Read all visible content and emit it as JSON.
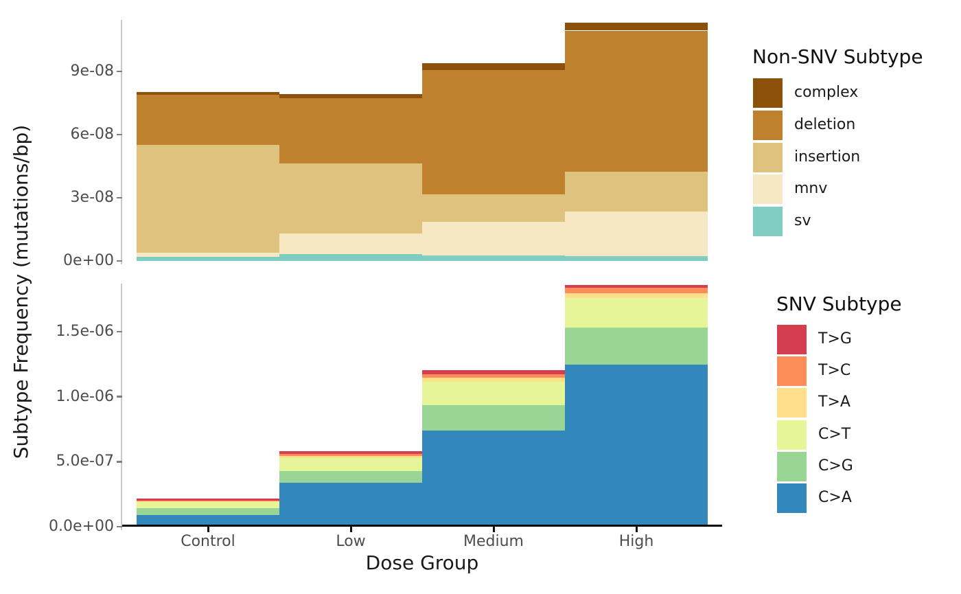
{
  "y_axis_title": "Subtype Frequency (mutations/bp)",
  "x_axis_title": "Dose Group",
  "dose_groups": [
    "Control",
    "Low",
    "Medium",
    "High"
  ],
  "style": {
    "axis_text_color": "#4d4d4d",
    "axis_title_color": "#1a1a1a",
    "y_axis_line_color": "#c9c9c9",
    "y_tick_color": "#7f7f7f",
    "x_axis_line_color": "#0a0a0a",
    "background": "#ffffff"
  },
  "chart_data": [
    {
      "type": "bar",
      "stacked": true,
      "facet": "non_snv",
      "categories": [
        "Control",
        "Low",
        "Medium",
        "High"
      ],
      "series": [
        {
          "name": "complex",
          "color": "#8c510a",
          "values": [
            1.2e-09,
            2e-09,
            3.1e-09,
            3.8e-09
          ]
        },
        {
          "name": "deletion",
          "color": "#bf812d",
          "values": [
            2.4e-08,
            3.1e-08,
            5.9e-08,
            6.7e-08
          ]
        },
        {
          "name": "insertion",
          "color": "#dfc27d",
          "values": [
            5.1e-08,
            3.3e-08,
            1.3e-08,
            1.9e-08
          ]
        },
        {
          "name": "mnv",
          "color": "#f6e8c3",
          "values": [
            2e-09,
            1e-08,
            1.6e-08,
            2.1e-08
          ]
        },
        {
          "name": "sv",
          "color": "#80cdc1",
          "values": [
            2e-09,
            3.2e-09,
            2.7e-09,
            2.4e-09
          ]
        }
      ],
      "ylabel": "Subtype Frequency (mutations/bp)",
      "ylim": [
        0,
        1.145e-07
      ],
      "grid": false,
      "yticks": {
        "values": [
          0,
          3e-08,
          6e-08,
          9e-08
        ],
        "labels": [
          "0e+00",
          "3e-08",
          "6e-08",
          "9e-08"
        ]
      },
      "legend": {
        "title": "Non-SNV Subtype",
        "position": "right"
      }
    },
    {
      "type": "bar",
      "stacked": true,
      "facet": "snv",
      "categories": [
        "Control",
        "Low",
        "Medium",
        "High"
      ],
      "series": [
        {
          "name": "T>G",
          "color": "#d53e4f",
          "values": [
            1.2e-08,
            2.1e-08,
            3e-08,
            2.5e-08
          ]
        },
        {
          "name": "T>C",
          "color": "#fc8d59",
          "values": [
            7e-09,
            1.6e-08,
            2.6e-08,
            3.9e-08
          ]
        },
        {
          "name": "T>A",
          "color": "#fee08b",
          "values": [
            7e-09,
            1.6e-08,
            3.2e-08,
            3.9e-08
          ]
        },
        {
          "name": "C>T",
          "color": "#e6f598",
          "values": [
            4.8e-08,
            1e-07,
            1.8e-07,
            2.27e-07
          ]
        },
        {
          "name": "C>G",
          "color": "#99d594",
          "values": [
            5.2e-08,
            9.3e-08,
            1.94e-07,
            2.86e-07
          ]
        },
        {
          "name": "C>A",
          "color": "#3288bd",
          "values": [
            8.8e-08,
            3.37e-07,
            7.42e-07,
            1.245e-06
          ]
        }
      ],
      "ylabel": "Subtype Frequency (mutations/bp)",
      "ylim": [
        0,
        1.87e-06
      ],
      "grid": false,
      "yticks": {
        "values": [
          0,
          5e-07,
          1e-06,
          1.5e-06
        ],
        "labels": [
          "0.0e+00",
          "5.0e-07",
          "1.0e-06",
          "1.5e-06"
        ]
      },
      "legend": {
        "title": "SNV Subtype",
        "position": "right"
      }
    }
  ]
}
